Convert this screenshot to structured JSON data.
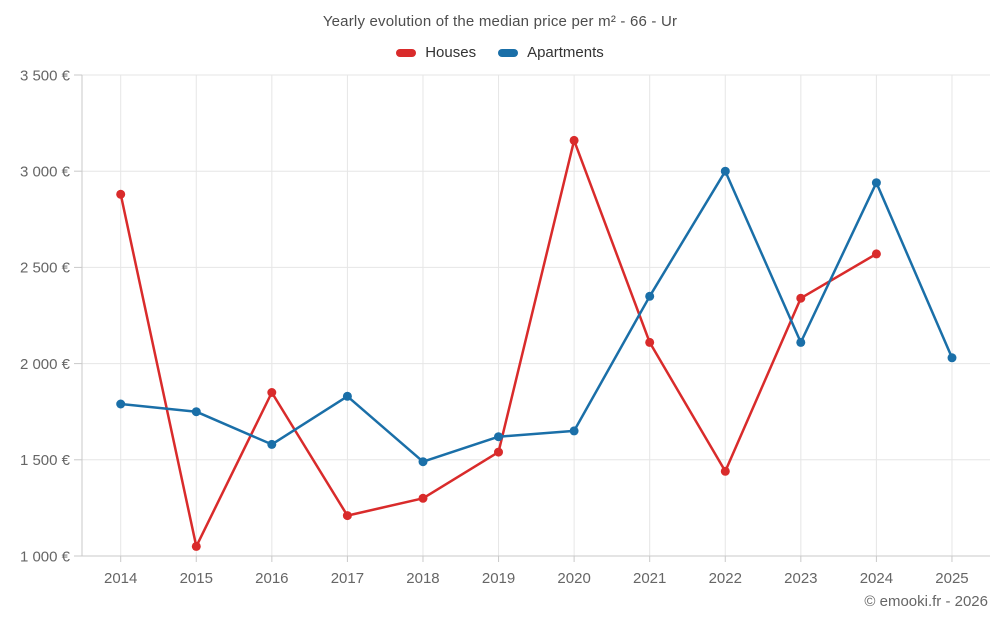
{
  "chart": {
    "title": "Yearly evolution of the median price per m² - 66 - Ur",
    "watermark": "© emooki.fr - 2026",
    "legend": [
      {
        "label": "Houses",
        "color": "#d92b2b"
      },
      {
        "label": "Apartments",
        "color": "#1a6fa8"
      }
    ]
  },
  "chart_data": {
    "type": "line",
    "title": "Yearly evolution of the median price per m² - 66 - Ur",
    "x": [
      2014,
      2015,
      2016,
      2017,
      2018,
      2019,
      2020,
      2021,
      2022,
      2023,
      2024,
      2025
    ],
    "series": [
      {
        "name": "Houses",
        "color": "#d92b2b",
        "values": [
          2880,
          1050,
          1850,
          1210,
          1300,
          1540,
          3160,
          2110,
          1440,
          2340,
          2570,
          null
        ]
      },
      {
        "name": "Apartments",
        "color": "#1a6fa8",
        "values": [
          1790,
          1750,
          1580,
          1830,
          1490,
          1620,
          1650,
          2350,
          3000,
          2110,
          2940,
          2030
        ]
      }
    ],
    "ylim": [
      1000,
      3500
    ],
    "yticks": {
      "values": [
        1000,
        1500,
        2000,
        2500,
        3000,
        3500
      ],
      "labels": [
        "1 000 €",
        "1 500 €",
        "2 000 €",
        "2 500 €",
        "3 000 €",
        "3 500 €"
      ]
    },
    "xlabel": "",
    "ylabel": "",
    "grid": true,
    "legend_position": "top"
  },
  "theme": {
    "background": "#ffffff",
    "grid_color": "#e6e6e6",
    "axis_color": "#c9c9c9",
    "label_color": "#666666",
    "title_color": "#4d4d4d",
    "legend_text_color": "#333333",
    "watermark_color": "#666666"
  }
}
